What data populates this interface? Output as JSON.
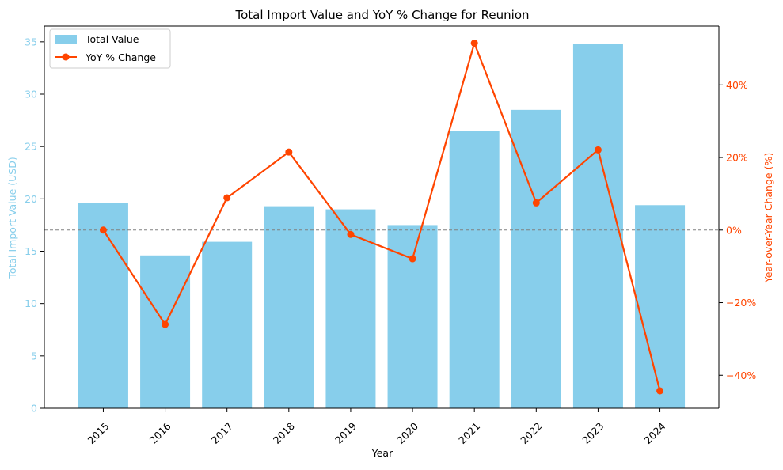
{
  "chart_data": {
    "type": "bar+line",
    "title": "Total Import Value and YoY % Change for Reunion",
    "xlabel": "Year",
    "ylabel_left": "Total Import Value (USD)",
    "ylabel_right": "Year-over-Year Change (%)",
    "categories": [
      "2015",
      "2016",
      "2017",
      "2018",
      "2019",
      "2020",
      "2021",
      "2022",
      "2023",
      "2024"
    ],
    "series": [
      {
        "name": "Total Value",
        "type": "bar",
        "axis": "left",
        "values": [
          19.6,
          14.6,
          15.9,
          19.3,
          19.0,
          17.5,
          26.5,
          28.5,
          34.8,
          19.4
        ]
      },
      {
        "name": "YoY % Change",
        "type": "line",
        "axis": "right",
        "values": [
          0.0,
          -26.0,
          8.9,
          21.5,
          -1.2,
          -7.9,
          51.5,
          7.5,
          22.1,
          -44.3
        ]
      }
    ],
    "ylim_left": [
      0,
      36.5
    ],
    "ylim_right": [
      -49.1,
      56.2
    ],
    "yticks_left": [
      0,
      5,
      10,
      15,
      20,
      25,
      30,
      35
    ],
    "yticks_right": [
      -40,
      -20,
      0,
      20,
      40
    ],
    "ytick_labels_right": [
      "−40%",
      "−20%",
      "0%",
      "20%",
      "40%"
    ],
    "reference_line": {
      "axis": "right",
      "value": 0,
      "style": "dashed"
    },
    "legend": {
      "position": "top-left",
      "entries": [
        "Total Value",
        "YoY % Change"
      ]
    },
    "grid": false,
    "colors": {
      "bar": "#87ceeb",
      "line": "#ff4500",
      "left_axis_text": "#87ceeb",
      "right_axis_text": "#ff4500",
      "reference": "#808080"
    }
  }
}
